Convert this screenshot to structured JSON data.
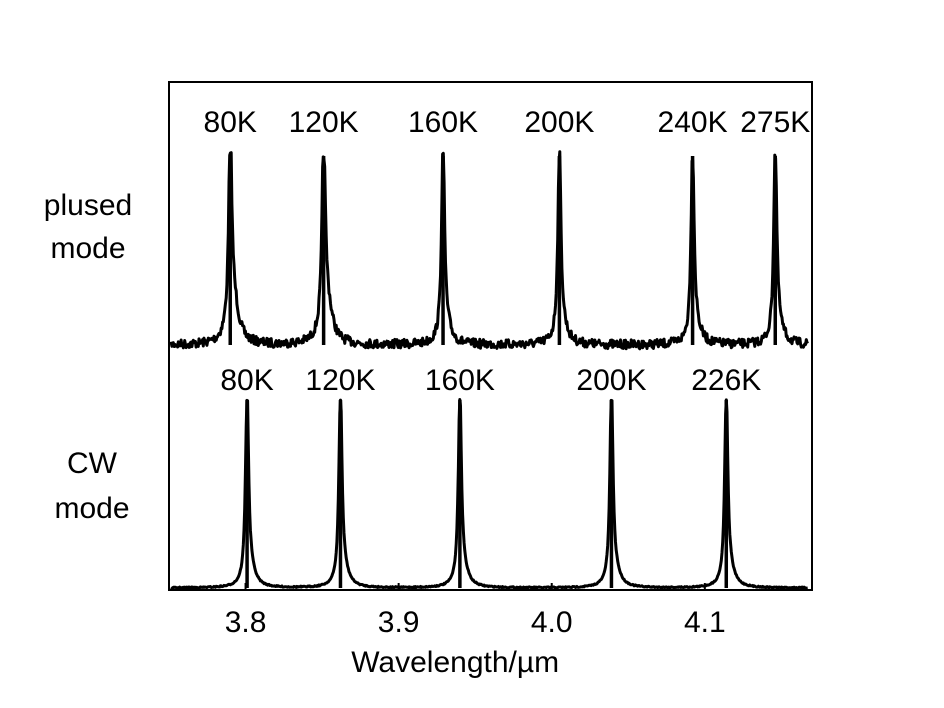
{
  "chart_data": {
    "type": "line",
    "xlabel": "Wavelength/µm",
    "xlim": [
      3.75,
      4.17
    ],
    "x_ticks": [
      "3.8",
      "3.9",
      "4.0",
      "4.1"
    ],
    "x_tick_values": [
      3.8,
      3.9,
      4.0,
      4.1
    ],
    "grid": false,
    "panels": [
      {
        "name_lines": [
          "plused",
          "mode"
        ],
        "series": [
          {
            "name": "80K",
            "peak_x": 3.79
          },
          {
            "name": "120K",
            "peak_x": 3.851
          },
          {
            "name": "160K",
            "peak_x": 3.929
          },
          {
            "name": "200K",
            "peak_x": 4.005
          },
          {
            "name": "240K",
            "peak_x": 4.092
          },
          {
            "name": "275K",
            "peak_x": 4.146
          }
        ]
      },
      {
        "name_lines": [
          "CW",
          "mode"
        ],
        "series": [
          {
            "name": "80K",
            "peak_x": 3.801
          },
          {
            "name": "120K",
            "peak_x": 3.862
          },
          {
            "name": "160K",
            "peak_x": 3.94
          },
          {
            "name": "200K",
            "peak_x": 4.039
          },
          {
            "name": "226K",
            "peak_x": 4.114
          }
        ]
      }
    ]
  }
}
